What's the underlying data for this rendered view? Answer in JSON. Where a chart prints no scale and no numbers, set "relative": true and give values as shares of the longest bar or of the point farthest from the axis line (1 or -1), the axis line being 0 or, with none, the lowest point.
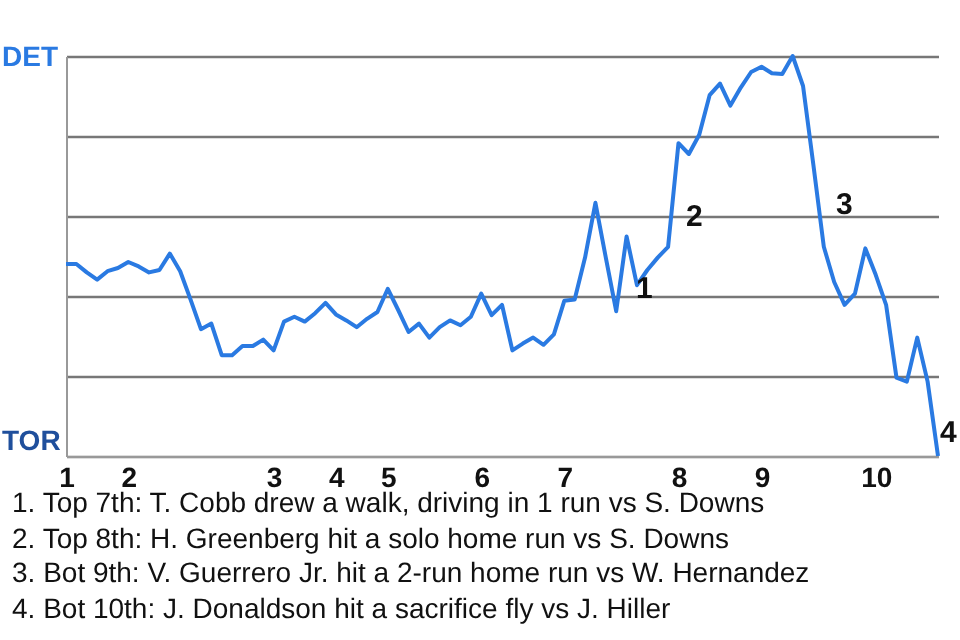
{
  "chart_data": {
    "type": "line",
    "relative": true,
    "grid": "y",
    "categories": [
      "1",
      null,
      null,
      null,
      null,
      null,
      "2",
      null,
      null,
      null,
      null,
      null,
      null,
      null,
      null,
      null,
      null,
      null,
      null,
      null,
      "3",
      null,
      null,
      null,
      null,
      null,
      "4",
      null,
      null,
      null,
      null,
      "5",
      null,
      null,
      null,
      null,
      null,
      null,
      null,
      null,
      "6",
      null,
      null,
      null,
      null,
      null,
      null,
      null,
      "7",
      null,
      null,
      null,
      null,
      null,
      null,
      null,
      null,
      null,
      null,
      "8",
      null,
      null,
      null,
      null,
      null,
      null,
      null,
      "9",
      null,
      null,
      null,
      null,
      null,
      null,
      null,
      null,
      null,
      null,
      "10",
      null,
      null,
      null,
      null,
      null,
      null
    ],
    "series": [
      {
        "color": "#2a7ae2",
        "values": [
          0.48,
          0.48,
          0.459,
          0.441,
          0.462,
          0.47,
          0.485,
          0.474,
          0.459,
          0.465,
          0.506,
          0.462,
          0.391,
          0.317,
          0.331,
          0.252,
          0.252,
          0.275,
          0.275,
          0.291,
          0.264,
          0.336,
          0.348,
          0.336,
          0.357,
          0.383,
          0.354,
          0.339,
          0.322,
          0.343,
          0.36,
          0.418,
          0.365,
          0.31,
          0.331,
          0.296,
          0.322,
          0.339,
          0.327,
          0.348,
          0.406,
          0.352,
          0.378,
          0.264,
          0.281,
          0.296,
          0.278,
          0.304,
          0.388,
          0.391,
          0.496,
          0.633,
          0.496,
          0.362,
          0.549,
          0.427,
          0.465,
          0.496,
          0.523,
          0.782,
          0.755,
          0.803,
          0.902,
          0.931,
          0.876,
          0.921,
          0.96,
          0.973,
          0.957,
          0.955,
          1,
          0.925,
          0.727,
          0.523,
          0.435,
          0.378,
          0.406,
          0.519,
          0.453,
          0.378,
          0.196,
          0.186,
          0.296,
          0.186,
          0
        ]
      }
    ],
    "annotations": [
      "DET",
      "TOR",
      "1",
      "2",
      "3",
      "4",
      "1. Top 7th: T. Cobb drew a walk, driving in 1 run vs S. Downs",
      "2. Top 8th: H. Greenberg hit a solo home run vs S. Downs",
      "3. Bot 9th: V. Guerrero Jr. hit a 2-run home run vs W. Hernandez",
      "4. Bot 10th: J. Donaldson hit a sacrifice fly vs J. Hiller"
    ]
  }
}
